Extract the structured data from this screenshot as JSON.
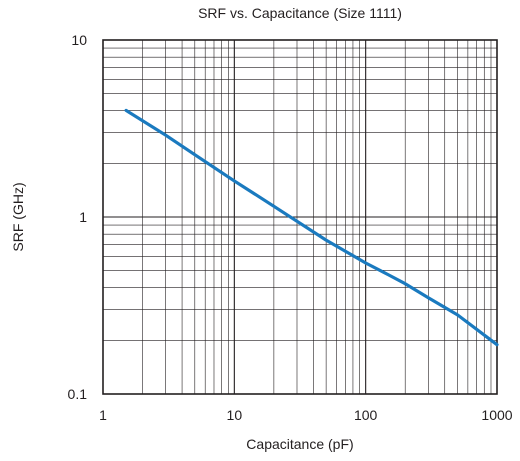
{
  "chart_data": {
    "type": "line",
    "title": "SRF vs. Capacitance (Size 1111)",
    "xlabel": "Capacitance (pF)",
    "ylabel": "SRF (GHz)",
    "x_scale": "log",
    "y_scale": "log",
    "xlim": [
      1,
      1000
    ],
    "ylim": [
      0.1,
      10
    ],
    "x_ticks": [
      "1",
      "10",
      "100",
      "1000"
    ],
    "y_ticks": [
      "0.1",
      "1",
      "10"
    ],
    "grid": true,
    "series": [
      {
        "color": "#1a7abf",
        "x": [
          1.5,
          3,
          5,
          10,
          20,
          50,
          100,
          150,
          200,
          300,
          500,
          1000
        ],
        "y": [
          4.0,
          2.9,
          2.25,
          1.6,
          1.15,
          0.74,
          0.55,
          0.47,
          0.42,
          0.35,
          0.28,
          0.19
        ]
      }
    ]
  }
}
